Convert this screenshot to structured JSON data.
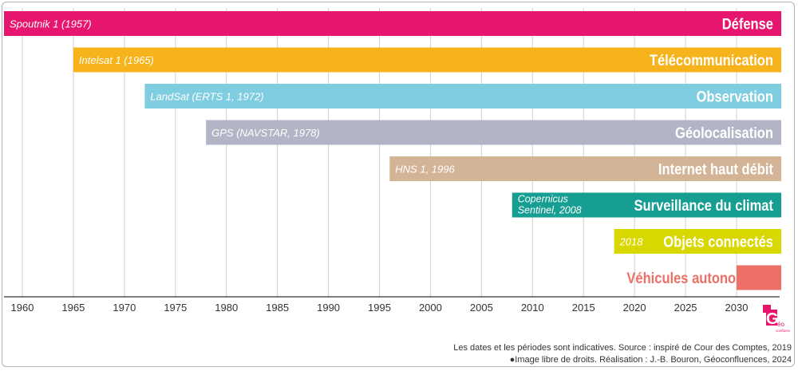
{
  "chart_data": {
    "type": "bar",
    "subtype": "horizontal-timeline",
    "title": "",
    "xlabel": "",
    "ylabel": "",
    "xlim": [
      1958,
      2036
    ],
    "x_ticks": [
      1960,
      1965,
      1970,
      1975,
      1980,
      1985,
      1990,
      1995,
      2000,
      2005,
      2010,
      2015,
      2020,
      2025,
      2030
    ],
    "grid": true,
    "series": [
      {
        "name": "Défense",
        "start": 1958,
        "end": 2035,
        "annotation": "Spoutnik 1 (1957)",
        "color": "#e6156e"
      },
      {
        "name": "Télécommunication",
        "start": 1965,
        "end": 2035,
        "annotation": "Intelsat 1 (1965)",
        "color": "#f7b31b"
      },
      {
        "name": "Observation",
        "start": 1972,
        "end": 2035,
        "annotation": "LandSat (ERTS 1, 1972)",
        "color": "#7fcde0"
      },
      {
        "name": "Géolocalisation",
        "start": 1978,
        "end": 2035,
        "annotation": "GPS (NAVSTAR, 1978)",
        "color": "#b2b5c6"
      },
      {
        "name": "Internet haut débit",
        "start": 1996,
        "end": 2035,
        "annotation": "HNS 1, 1996",
        "color": "#d4b496"
      },
      {
        "name": "Surveillance du climat",
        "start": 2008,
        "end": 2035,
        "annotation": "Copernicus\nSentinel, 2008",
        "color": "#169e92"
      },
      {
        "name": "Objets connectés",
        "start": 2018,
        "end": 2035,
        "annotation": "2018",
        "color": "#d9d700"
      },
      {
        "name": "Véhicules autonomes...",
        "start": 2030,
        "end": 2035,
        "annotation": "",
        "color": "#ed7067"
      }
    ]
  },
  "footer": {
    "line1": "Les dates et les périodes sont indicatives. Source : inspiré de Cour des Comptes, 2019",
    "line2": "Image libre de droits. Réalisation : J.-B. Bouron, Géoconfluences, 2024"
  },
  "logo": {
    "text_main": "G",
    "text_small": "éo",
    "text_sub": "confluences",
    "color": "#e6156e"
  }
}
